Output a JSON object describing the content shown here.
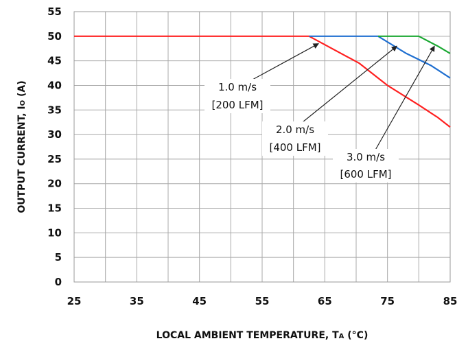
{
  "chart_data": {
    "type": "line",
    "xlabel": "LOCAL AMBIENT TEMPERATURE, T",
    "xlabel_sub": "A",
    "xlabel_unit": " (°C)",
    "ylabel": "OUTPUT CURRENT, I",
    "ylabel_sub": "O",
    "ylabel_unit": " (A)",
    "xlim": [
      25,
      85
    ],
    "ylim": [
      0,
      55
    ],
    "x_ticks": [
      "25",
      "35",
      "45",
      "55",
      "65",
      "75",
      "85"
    ],
    "y_ticks": [
      "0",
      "5",
      "10",
      "15",
      "20",
      "25",
      "30",
      "35",
      "40",
      "45",
      "50",
      "55"
    ],
    "grid": true,
    "series": [
      {
        "name": "1.0 m/s [200 LFM]",
        "color": "#ff2020",
        "x": [
          25,
          62.5,
          70.5,
          75,
          80,
          83,
          85
        ],
        "y": [
          50,
          50,
          44.5,
          40,
          36,
          33.5,
          31.5
        ]
      },
      {
        "name": "2.0 m/s [400 LFM]",
        "color": "#1f6fd0",
        "x": [
          62.5,
          73.5,
          78,
          82,
          85
        ],
        "y": [
          50,
          50,
          46.5,
          44,
          41.5
        ]
      },
      {
        "name": "3.0 m/s [600 LFM]",
        "color": "#1aa832",
        "x": [
          73.5,
          80,
          83,
          85
        ],
        "y": [
          50,
          50,
          48,
          46.5
        ]
      }
    ],
    "annotations": [
      {
        "line1": "1.0 m/s",
        "line2": "[200 LFM]",
        "arrow_to": [
          64,
          48.5
        ]
      },
      {
        "line1": "2.0 m/s",
        "line2": "[400 LFM]",
        "arrow_to": [
          76.5,
          48
        ]
      },
      {
        "line1": "3.0 m/s",
        "line2": "[600 LFM]",
        "arrow_to": [
          82.5,
          48
        ]
      }
    ]
  }
}
